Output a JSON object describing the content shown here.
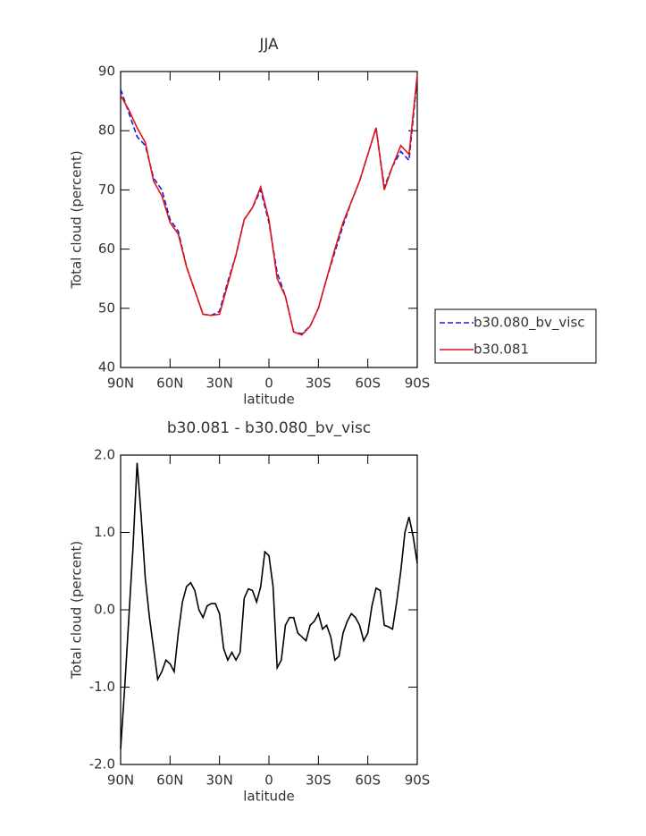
{
  "chart_data": [
    {
      "type": "line",
      "title": "JJA",
      "x_label": "latitude",
      "y_label": "Total cloud (percent)",
      "x": [
        90,
        85,
        80,
        75,
        70,
        65,
        60,
        55,
        50,
        45,
        40,
        35,
        30,
        25,
        20,
        15,
        10,
        5,
        0,
        -5,
        -10,
        -15,
        -20,
        -25,
        -30,
        -35,
        -40,
        -45,
        -50,
        -55,
        -60,
        -65,
        -70,
        -75,
        -80,
        -85,
        -90
      ],
      "series": [
        {
          "name": "b30.080_bv_visc",
          "color": "#1a1ad6",
          "line_style": "dashed",
          "values": [
            87,
            83,
            79,
            77.5,
            72,
            70,
            65,
            63,
            57,
            53,
            49,
            48.8,
            49.5,
            54.5,
            59,
            65,
            67,
            70,
            64.5,
            56,
            52,
            46,
            45.7,
            47,
            50,
            55,
            59.5,
            64,
            68,
            71.5,
            76,
            80.5,
            70.5,
            74,
            76.5,
            75,
            89
          ]
        },
        {
          "name": "b30.081",
          "color": "#e01515",
          "line_style": "solid",
          "values": [
            86,
            83.5,
            80.5,
            78,
            71.5,
            69,
            64.5,
            62.5,
            57,
            53,
            49,
            48.8,
            49,
            54,
            59,
            65,
            67,
            70.5,
            65,
            55,
            52,
            46,
            45.5,
            47,
            50,
            55,
            60,
            64.5,
            68,
            71.5,
            76,
            80.5,
            70,
            74,
            77.5,
            76,
            89.5
          ]
        }
      ],
      "xlim": [
        90,
        -90
      ],
      "xticks": [
        {
          "value": 90,
          "label": "90N"
        },
        {
          "value": 60,
          "label": "60N"
        },
        {
          "value": 30,
          "label": "30N"
        },
        0,
        {
          "value": -30,
          "label": "30S"
        },
        {
          "value": -60,
          "label": "60S"
        },
        {
          "value": -90,
          "label": "90S"
        }
      ],
      "ylim": [
        40,
        90
      ],
      "yticks": [
        40,
        50,
        60,
        70,
        80,
        90
      ],
      "legend": "outside-right"
    },
    {
      "type": "line",
      "title": "b30.081 - b30.080_bv_visc",
      "x_label": "latitude",
      "y_label": "Total cloud (percent)",
      "x": [
        90,
        87.5,
        85,
        82.5,
        80,
        77.5,
        75,
        72.5,
        70,
        67.5,
        65,
        62.5,
        60,
        57.5,
        55,
        52.5,
        50,
        47.5,
        45,
        42.5,
        40,
        37.5,
        35,
        32.5,
        30,
        27.5,
        25,
        22.5,
        20,
        17.5,
        15,
        12.5,
        10,
        7.5,
        5,
        2.5,
        0,
        -2.5,
        -5,
        -7.5,
        -10,
        -12.5,
        -15,
        -17.5,
        -20,
        -22.5,
        -25,
        -27.5,
        -30,
        -32.5,
        -35,
        -37.5,
        -40,
        -42.5,
        -45,
        -47.5,
        -50,
        -52.5,
        -55,
        -57.5,
        -60,
        -62.5,
        -65,
        -67.5,
        -70,
        -72.5,
        -75,
        -77.5,
        -80,
        -82.5,
        -85,
        -87.5,
        -90
      ],
      "series": [
        {
          "color": "#000000",
          "line_style": "solid",
          "values": [
            -1.8,
            -1.0,
            -0.1,
            0.8,
            1.9,
            1.2,
            0.4,
            -0.1,
            -0.5,
            -0.9,
            -0.8,
            -0.65,
            -0.7,
            -0.8,
            -0.3,
            0.1,
            0.3,
            0.35,
            0.25,
            0.0,
            -0.1,
            0.05,
            0.08,
            0.08,
            -0.05,
            -0.5,
            -0.65,
            -0.55,
            -0.65,
            -0.55,
            0.15,
            0.27,
            0.25,
            0.1,
            0.3,
            0.75,
            0.7,
            0.3,
            -0.75,
            -0.65,
            -0.2,
            -0.1,
            -0.1,
            -0.3,
            -0.35,
            -0.4,
            -0.2,
            -0.15,
            -0.05,
            -0.25,
            -0.2,
            -0.35,
            -0.65,
            -0.6,
            -0.3,
            -0.15,
            -0.05,
            -0.1,
            -0.2,
            -0.4,
            -0.3,
            0.05,
            0.28,
            0.25,
            -0.2,
            -0.22,
            -0.25,
            0.1,
            0.5,
            1.0,
            1.2,
            0.95,
            0.6
          ]
        }
      ],
      "xlim": [
        90,
        -90
      ],
      "xticks": [
        {
          "value": 90,
          "label": "90N"
        },
        {
          "value": 60,
          "label": "60N"
        },
        {
          "value": 30,
          "label": "30N"
        },
        0,
        {
          "value": -30,
          "label": "30S"
        },
        {
          "value": -60,
          "label": "60S"
        },
        {
          "value": -90,
          "label": "90S"
        }
      ],
      "ylim": [
        -2,
        2
      ],
      "yticks": [
        {
          "value": -2,
          "label": "-2.0"
        },
        {
          "value": -1,
          "label": "-1.0"
        },
        {
          "value": 0,
          "label": "0.0"
        },
        {
          "value": 1,
          "label": "1.0"
        },
        {
          "value": 2,
          "label": "2.0"
        }
      ]
    }
  ]
}
